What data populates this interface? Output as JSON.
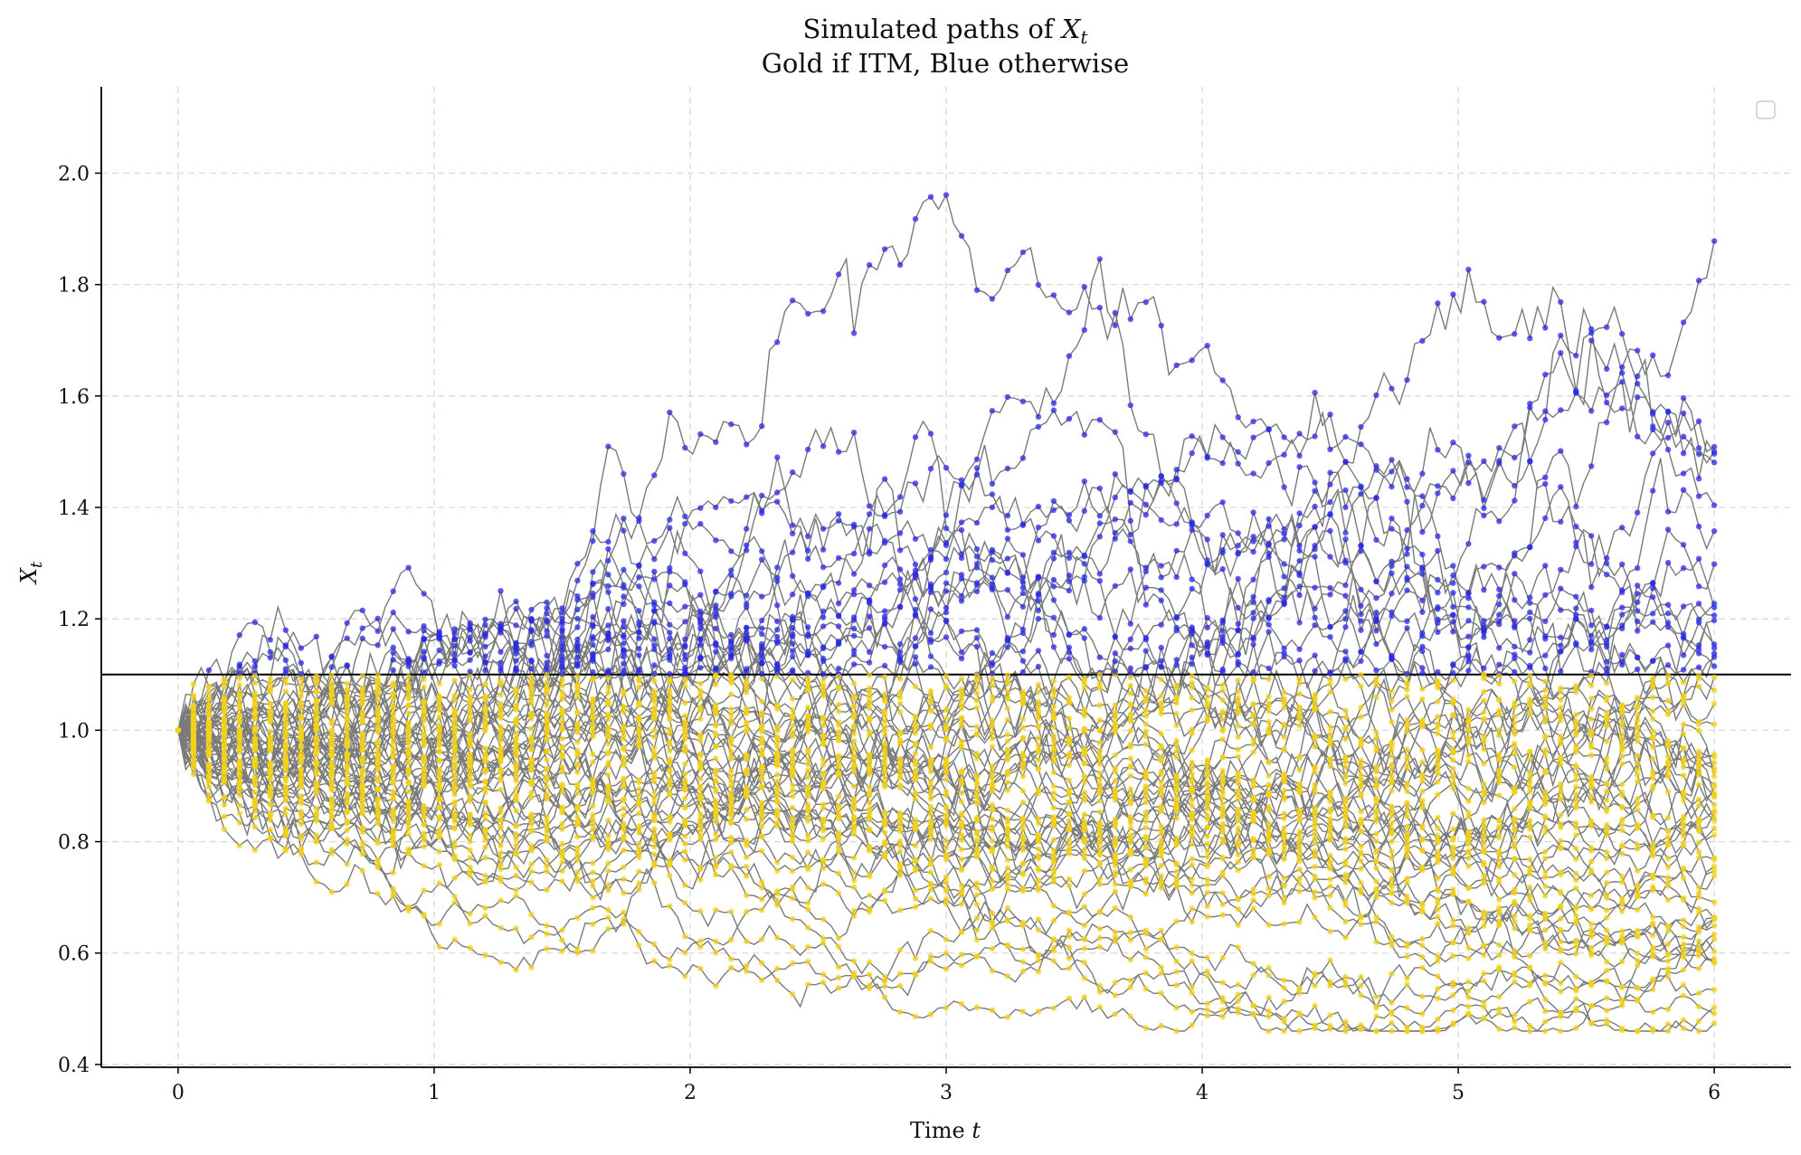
{
  "chart_data": {
    "type": "line",
    "title_line1": "Simulated paths of ",
    "title_var": "X",
    "title_sub": "t",
    "title_line2": "Gold if ITM, Blue otherwise",
    "xlabel_prefix": "Time ",
    "xlabel_var": "t",
    "ylabel_var": "X",
    "ylabel_sub": "t",
    "xlim": [
      -0.3,
      6.3
    ],
    "ylim": [
      0.395,
      2.155
    ],
    "xticks": [
      0,
      1,
      2,
      3,
      4,
      5,
      6
    ],
    "xtick_labels": [
      "0",
      "1",
      "2",
      "3",
      "4",
      "5",
      "6"
    ],
    "yticks": [
      0.4,
      0.6,
      0.8,
      1.0,
      1.2,
      1.4,
      1.6,
      1.8,
      2.0
    ],
    "ytick_labels": [
      "0.4",
      "0.6",
      "0.8",
      "1.0",
      "1.2",
      "1.4",
      "1.6",
      "1.8",
      "2.0"
    ],
    "grid": true,
    "legend": "top-right (empty)",
    "threshold": 1.1,
    "initial_value": 1.0,
    "t_end": 6.0,
    "steps": 200,
    "n_paths": 60,
    "colors": {
      "itm": "#f2d21b",
      "otm": "#2a2ae6",
      "path_line": "#7a7a7a",
      "threshold_line": "#000000",
      "grid": "#d9d9d9"
    }
  }
}
